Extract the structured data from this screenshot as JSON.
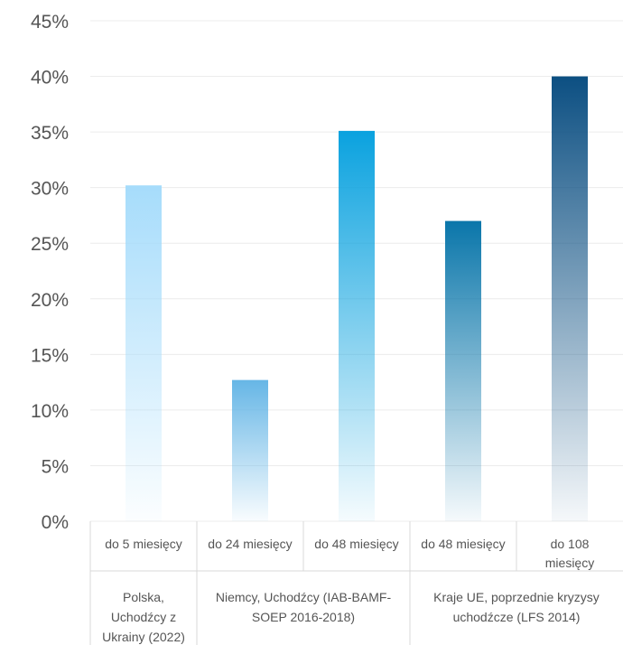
{
  "chart_data": {
    "type": "bar",
    "title": "",
    "xlabel": "",
    "ylabel": "",
    "ylim": [
      0,
      45
    ],
    "ytick_labels": [
      "0%",
      "5%",
      "10%",
      "15%",
      "20%",
      "25%",
      "30%",
      "35%",
      "40%",
      "45%"
    ],
    "grid": true,
    "categories": [
      [
        "do 5 miesięcy"
      ],
      [
        "do 24 miesięcy"
      ],
      [
        "do 48 miesięcy"
      ],
      [
        "do 48 miesięcy"
      ],
      [
        "do 108",
        "miesięcy"
      ]
    ],
    "values": [
      30.2,
      12.7,
      35.1,
      27.0,
      40.0
    ],
    "unit": "%",
    "groups": [
      {
        "label_lines": [
          "Polska,",
          "Uchodźcy z",
          "Ukrainy (2022)"
        ],
        "bars": [
          0
        ]
      },
      {
        "label_lines": [
          "Niemcy, Uchodźcy  (IAB-BAMF-",
          "SOEP 2016-2018)"
        ],
        "bars": [
          1,
          2
        ]
      },
      {
        "label_lines": [
          "Kraje UE, poprzednie kryzysy",
          "uchodźcze (LFS 2014)"
        ],
        "bars": [
          3,
          4
        ]
      }
    ],
    "colors": [
      "#a6dcfb",
      "#66b6e6",
      "#0aa2df",
      "#0a76aa",
      "#0c4f82"
    ]
  }
}
